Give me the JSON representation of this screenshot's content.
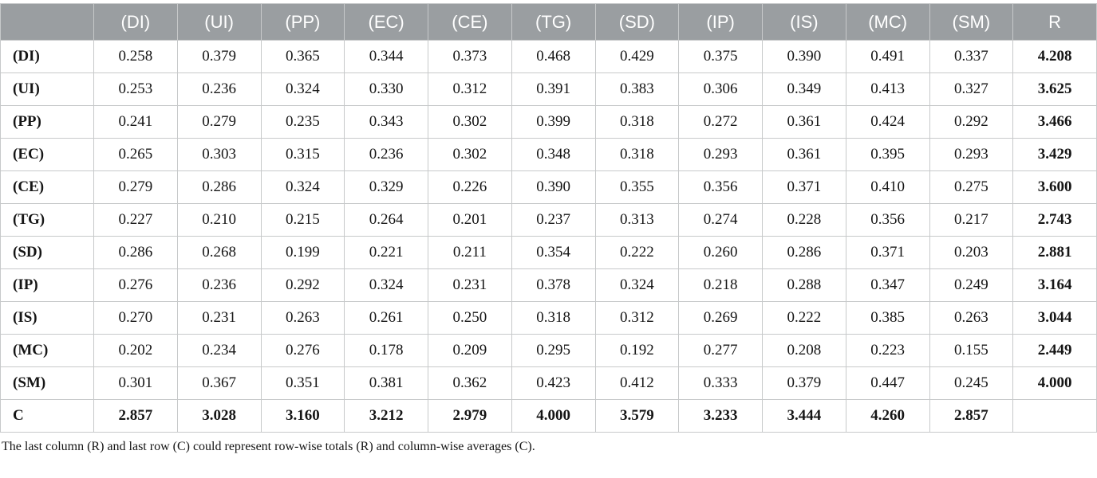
{
  "colors": {
    "header_bg": "#9a9ea1",
    "header_text": "#ffffff",
    "border": "#c7c9ca",
    "text": "#151515"
  },
  "table": {
    "corner_label": "",
    "columns": [
      "(DI)",
      "(UI)",
      "(PP)",
      "(EC)",
      "(CE)",
      "(TG)",
      "(SD)",
      "(IP)",
      "(IS)",
      "(MC)",
      "(SM)",
      "R"
    ],
    "rows": [
      {
        "label": "(DI)",
        "values": [
          "0.258",
          "0.379",
          "0.365",
          "0.344",
          "0.373",
          "0.468",
          "0.429",
          "0.375",
          "0.390",
          "0.491",
          "0.337",
          "4.208"
        ]
      },
      {
        "label": "(UI)",
        "values": [
          "0.253",
          "0.236",
          "0.324",
          "0.330",
          "0.312",
          "0.391",
          "0.383",
          "0.306",
          "0.349",
          "0.413",
          "0.327",
          "3.625"
        ]
      },
      {
        "label": "(PP)",
        "values": [
          "0.241",
          "0.279",
          "0.235",
          "0.343",
          "0.302",
          "0.399",
          "0.318",
          "0.272",
          "0.361",
          "0.424",
          "0.292",
          "3.466"
        ]
      },
      {
        "label": "(EC)",
        "values": [
          "0.265",
          "0.303",
          "0.315",
          "0.236",
          "0.302",
          "0.348",
          "0.318",
          "0.293",
          "0.361",
          "0.395",
          "0.293",
          "3.429"
        ]
      },
      {
        "label": "(CE)",
        "values": [
          "0.279",
          "0.286",
          "0.324",
          "0.329",
          "0.226",
          "0.390",
          "0.355",
          "0.356",
          "0.371",
          "0.410",
          "0.275",
          "3.600"
        ]
      },
      {
        "label": "(TG)",
        "values": [
          "0.227",
          "0.210",
          "0.215",
          "0.264",
          "0.201",
          "0.237",
          "0.313",
          "0.274",
          "0.228",
          "0.356",
          "0.217",
          "2.743"
        ]
      },
      {
        "label": "(SD)",
        "values": [
          "0.286",
          "0.268",
          "0.199",
          "0.221",
          "0.211",
          "0.354",
          "0.222",
          "0.260",
          "0.286",
          "0.371",
          "0.203",
          "2.881"
        ]
      },
      {
        "label": "(IP)",
        "values": [
          "0.276",
          "0.236",
          "0.292",
          "0.324",
          "0.231",
          "0.378",
          "0.324",
          "0.218",
          "0.288",
          "0.347",
          "0.249",
          "3.164"
        ]
      },
      {
        "label": "(IS)",
        "values": [
          "0.270",
          "0.231",
          "0.263",
          "0.261",
          "0.250",
          "0.318",
          "0.312",
          "0.269",
          "0.222",
          "0.385",
          "0.263",
          "3.044"
        ]
      },
      {
        "label": "(MC)",
        "values": [
          "0.202",
          "0.234",
          "0.276",
          "0.178",
          "0.209",
          "0.295",
          "0.192",
          "0.277",
          "0.208",
          "0.223",
          "0.155",
          "2.449"
        ]
      },
      {
        "label": "(SM)",
        "values": [
          "0.301",
          "0.367",
          "0.351",
          "0.381",
          "0.362",
          "0.423",
          "0.412",
          "0.333",
          "0.379",
          "0.447",
          "0.245",
          "4.000"
        ]
      },
      {
        "label": "C",
        "values": [
          "2.857",
          "3.028",
          "3.160",
          "3.212",
          "2.979",
          "4.000",
          "3.579",
          "3.233",
          "3.444",
          "4.260",
          "2.857",
          ""
        ]
      }
    ]
  },
  "footnote": "The last column (R) and last row (C) could represent row-wise totals (R) and column-wise averages (C)."
}
